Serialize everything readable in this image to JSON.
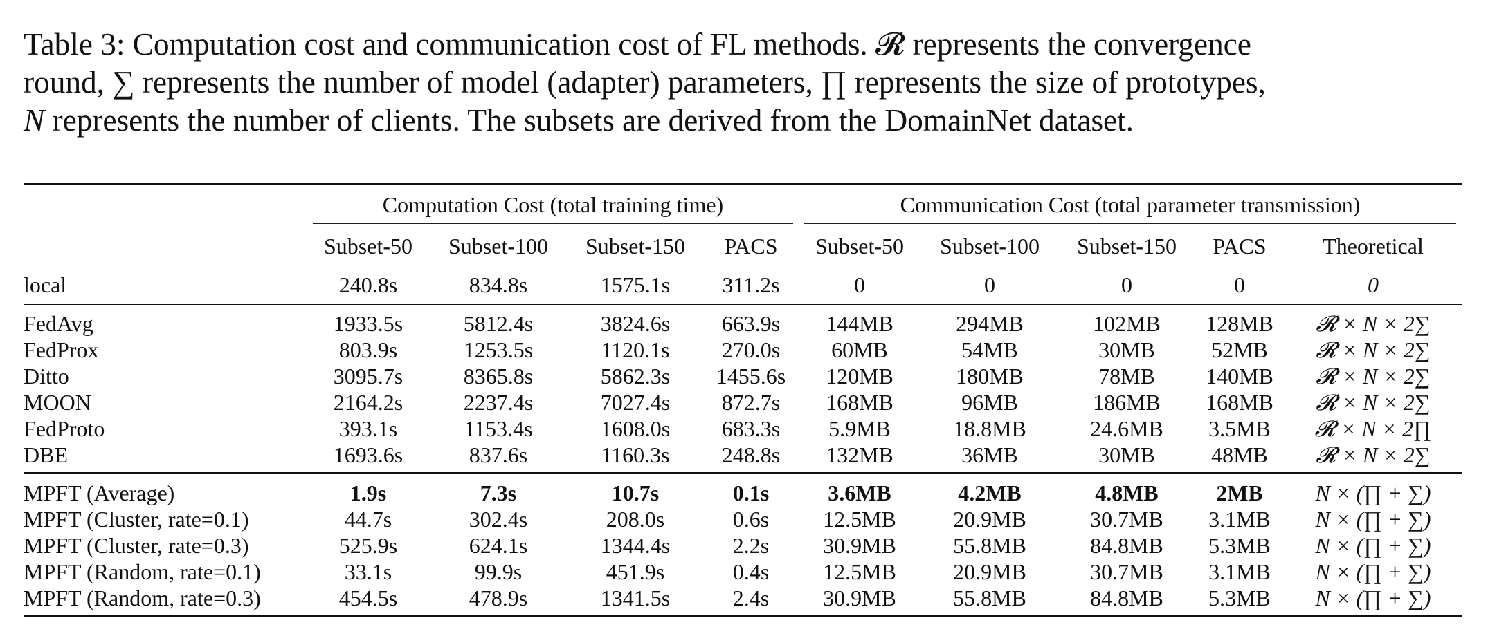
{
  "caption": {
    "line1": "Table 3: Computation cost and communication cost of FL methods. 𝓡 represents the convergence",
    "line2": "round, ∑ represents the number of model (adapter) parameters, ∏ represents the size of prototypes,",
    "line3_sym": "N",
    "line3": " represents the number of clients. The subsets are derived from the DomainNet dataset."
  },
  "table": {
    "group_headers": {
      "computation": "Computation Cost (total training time)",
      "communication": "Communication Cost (total parameter transmission)"
    },
    "columns": [
      "Subset-50",
      "Subset-100",
      "Subset-150",
      "PACS",
      "Subset-50",
      "Subset-100",
      "Subset-150",
      "PACS",
      "Theoretical"
    ],
    "local": {
      "name": "local",
      "values": [
        "240.8s",
        "834.8s",
        "1575.1s",
        "311.2s",
        "0",
        "0",
        "0",
        "0",
        "0"
      ]
    },
    "baselines": [
      {
        "name": "FedAvg",
        "values": [
          "1933.5s",
          "5812.4s",
          "3824.6s",
          "663.9s",
          "144MB",
          "294MB",
          "102MB",
          "128MB",
          "𝓡 × N × 2∑"
        ]
      },
      {
        "name": "FedProx",
        "values": [
          "803.9s",
          "1253.5s",
          "1120.1s",
          "270.0s",
          "60MB",
          "54MB",
          "30MB",
          "52MB",
          "𝓡 × N × 2∑"
        ]
      },
      {
        "name": "Ditto",
        "values": [
          "3095.7s",
          "8365.8s",
          "5862.3s",
          "1455.6s",
          "120MB",
          "180MB",
          "78MB",
          "140MB",
          "𝓡 × N × 2∑"
        ]
      },
      {
        "name": "MOON",
        "values": [
          "2164.2s",
          "2237.4s",
          "7027.4s",
          "872.7s",
          "168MB",
          "96MB",
          "186MB",
          "168MB",
          "𝓡 × N × 2∑"
        ]
      },
      {
        "name": "FedProto",
        "values": [
          "393.1s",
          "1153.4s",
          "1608.0s",
          "683.3s",
          "5.9MB",
          "18.8MB",
          "24.6MB",
          "3.5MB",
          "𝓡 × N × 2∏"
        ]
      },
      {
        "name": "DBE",
        "values": [
          "1693.6s",
          "837.6s",
          "1160.3s",
          "248.8s",
          "132MB",
          "36MB",
          "30MB",
          "48MB",
          "𝓡 × N × 2∑"
        ]
      }
    ],
    "mpft": [
      {
        "name": "MPFT (Average)",
        "values": [
          "1.9s",
          "7.3s",
          "10.7s",
          "0.1s",
          "3.6MB",
          "4.2MB",
          "4.8MB",
          "2MB",
          "N × (∏ + ∑)"
        ]
      },
      {
        "name": "MPFT (Cluster, rate=0.1)",
        "values": [
          "44.7s",
          "302.4s",
          "208.0s",
          "0.6s",
          "12.5MB",
          "20.9MB",
          "30.7MB",
          "3.1MB",
          "N × (∏ + ∑)"
        ]
      },
      {
        "name": "MPFT (Cluster, rate=0.3)",
        "values": [
          "525.9s",
          "624.1s",
          "1344.4s",
          "2.2s",
          "30.9MB",
          "55.8MB",
          "84.8MB",
          "5.3MB",
          "N × (∏ + ∑)"
        ]
      },
      {
        "name": "MPFT (Random, rate=0.1)",
        "values": [
          "33.1s",
          "99.9s",
          "451.9s",
          "0.4s",
          "12.5MB",
          "20.9MB",
          "30.7MB",
          "3.1MB",
          "N × (∏ + ∑)"
        ]
      },
      {
        "name": "MPFT (Random, rate=0.3)",
        "values": [
          "454.5s",
          "478.9s",
          "1341.5s",
          "2.4s",
          "30.9MB",
          "55.8MB",
          "84.8MB",
          "5.3MB",
          "N × (∏ + ∑)"
        ]
      }
    ]
  }
}
